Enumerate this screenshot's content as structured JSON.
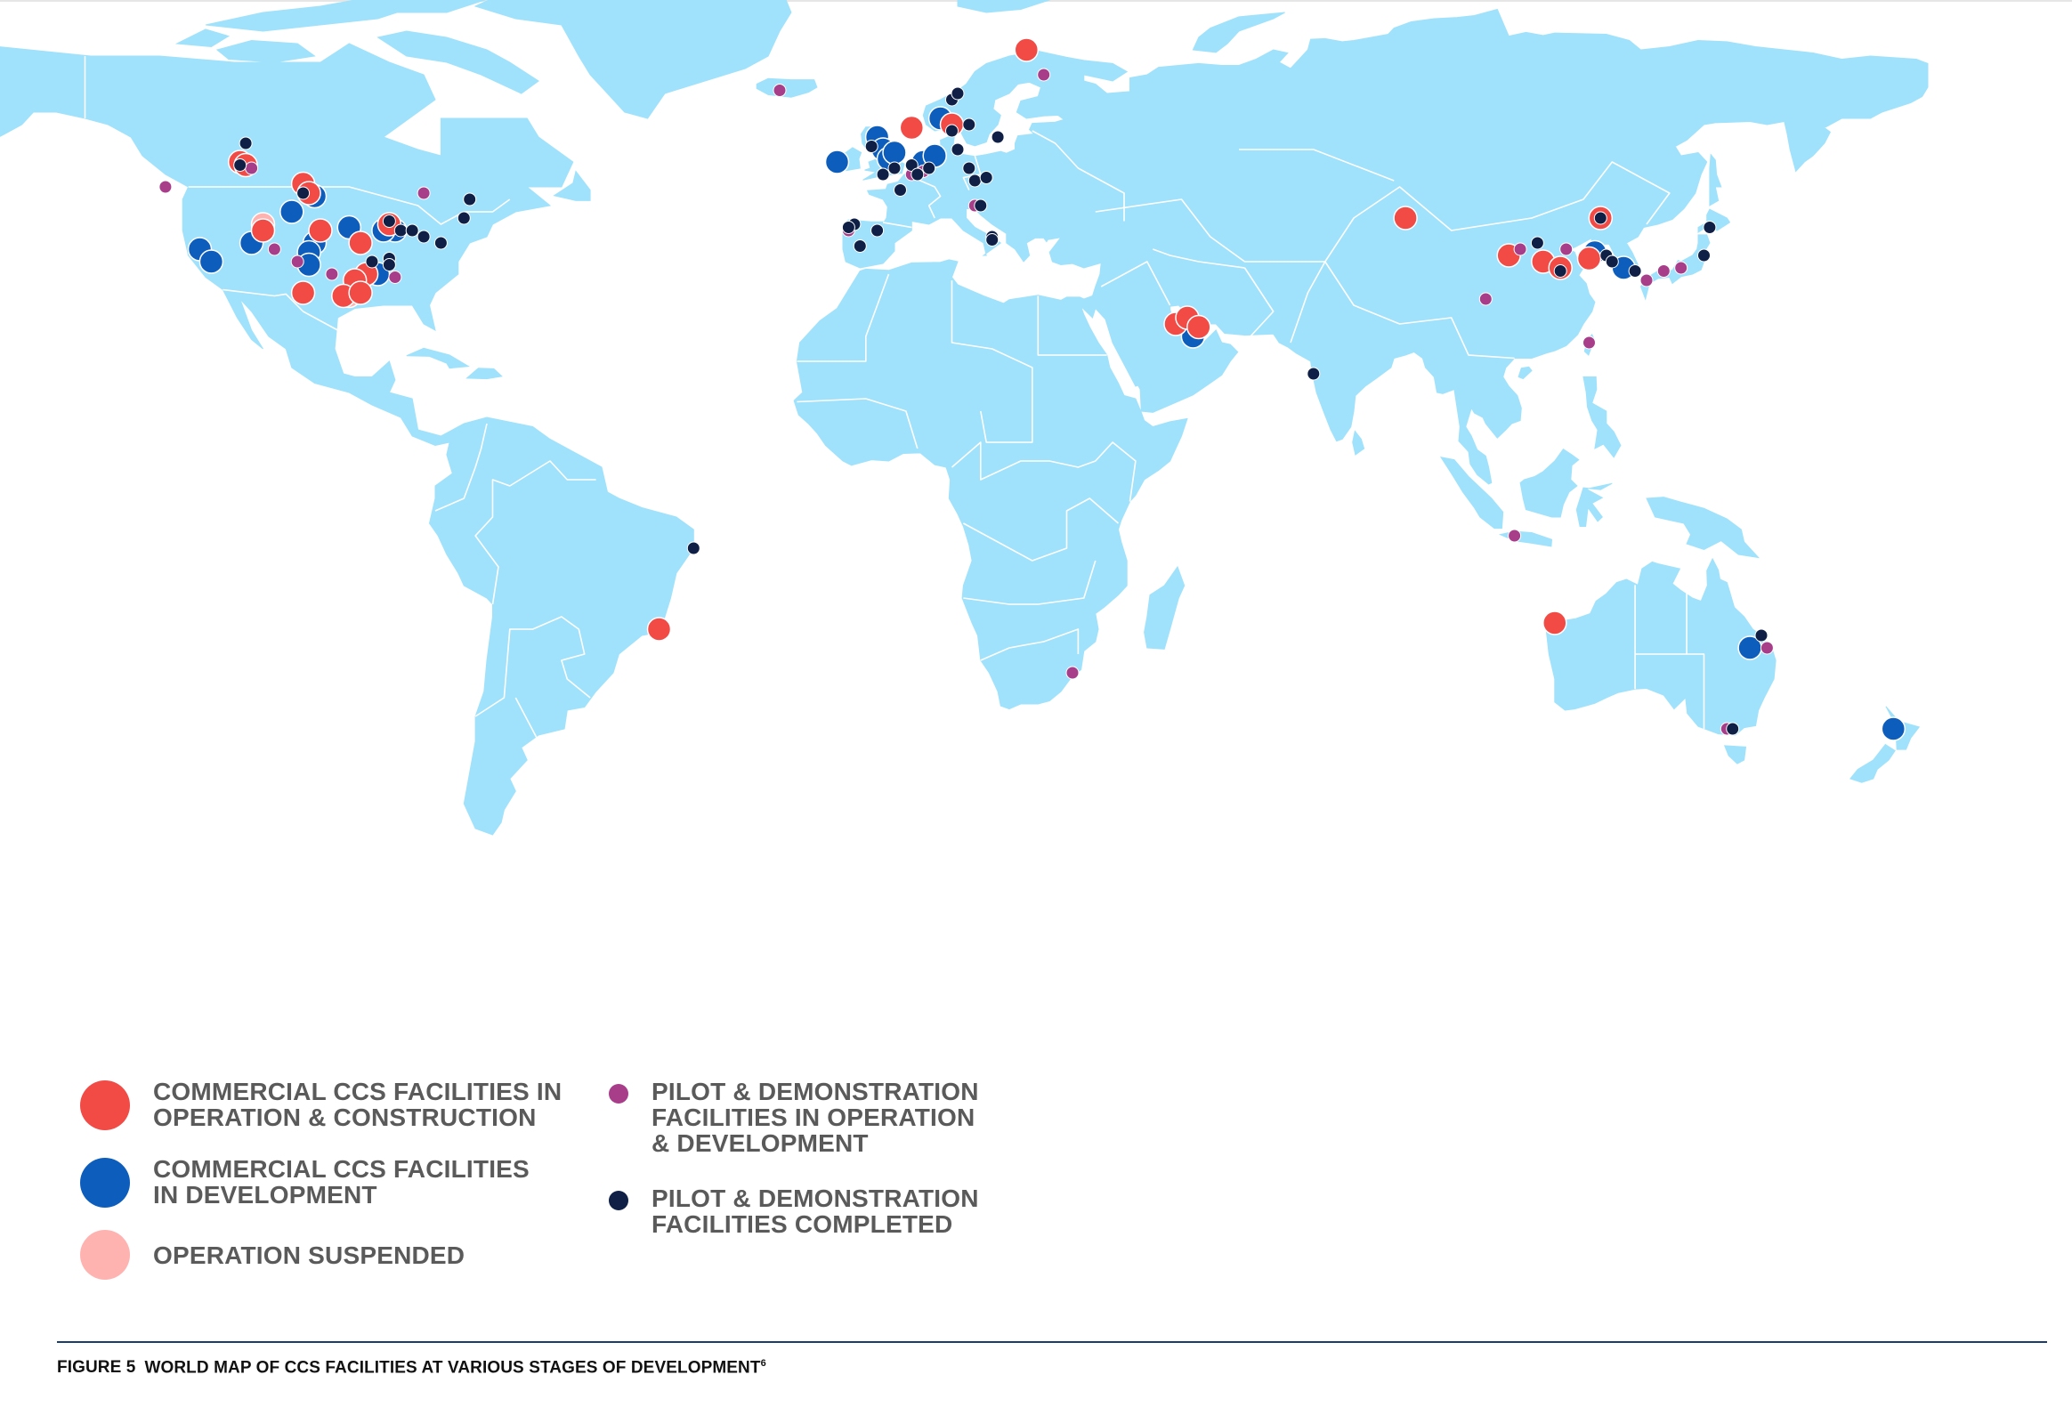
{
  "legend": {
    "items": [
      {
        "key": "commercial_operation",
        "label": "COMMERCIAL CCS FACILITIES IN\nOPERATION & CONSTRUCTION",
        "color": "#f24a45"
      },
      {
        "key": "commercial_development",
        "label": "COMMERCIAL CCS FACILITIES\nIN DEVELOPMENT",
        "color": "#0d5dbd"
      },
      {
        "key": "suspended",
        "label": "OPERATION SUSPENDED",
        "color": "#ffb3b0"
      },
      {
        "key": "pilot_operation",
        "label": "PILOT & DEMONSTRATION\nFACILITIES IN OPERATION\n& DEVELOPMENT",
        "color": "#a83e8a"
      },
      {
        "key": "pilot_completed",
        "label": "PILOT & DEMONSTRATION\nFACILITIES COMPLETED",
        "color": "#0f1f45"
      }
    ]
  },
  "caption": {
    "number": "FIGURE 5",
    "title": "WORLD MAP OF CCS FACILITIES AT VARIOUS STAGES OF DEVELOPMENT",
    "footnote": "6"
  },
  "map": {
    "land_color": "#a0e2fb",
    "ocean_color": "#ffffff",
    "border_color": "#ffffff",
    "marker_stroke": "#ffffff",
    "facilities": [
      {
        "t": "commercial_operation",
        "lon": -114,
        "lat": 53
      },
      {
        "t": "commercial_operation",
        "lon": -113,
        "lat": 52.5
      },
      {
        "t": "commercial_operation",
        "lon": -103,
        "lat": 49.5
      },
      {
        "t": "commercial_operation",
        "lon": -102,
        "lat": 48
      },
      {
        "t": "commercial_operation",
        "lon": -110,
        "lat": 42
      },
      {
        "t": "commercial_operation",
        "lon": -100,
        "lat": 42
      },
      {
        "t": "commercial_operation",
        "lon": -93,
        "lat": 40
      },
      {
        "t": "commercial_operation",
        "lon": -88,
        "lat": 43
      },
      {
        "t": "commercial_operation",
        "lon": -92,
        "lat": 35
      },
      {
        "t": "commercial_operation",
        "lon": -94,
        "lat": 34
      },
      {
        "t": "commercial_operation",
        "lon": -103,
        "lat": 32
      },
      {
        "t": "commercial_operation",
        "lon": -96,
        "lat": 31.5
      },
      {
        "t": "commercial_operation",
        "lon": -93,
        "lat": 32
      },
      {
        "t": "commercial_operation",
        "lon": -41,
        "lat": -22
      },
      {
        "t": "commercial_operation",
        "lon": 3,
        "lat": 58.5
      },
      {
        "t": "commercial_operation",
        "lon": 10,
        "lat": 59
      },
      {
        "t": "commercial_operation",
        "lon": 23,
        "lat": 71
      },
      {
        "t": "commercial_operation",
        "lon": 49,
        "lat": 27
      },
      {
        "t": "commercial_operation",
        "lon": 51,
        "lat": 28
      },
      {
        "t": "commercial_operation",
        "lon": 53,
        "lat": 26.5
      },
      {
        "t": "commercial_operation",
        "lon": 89,
        "lat": 44
      },
      {
        "t": "commercial_operation",
        "lon": 123,
        "lat": 44
      },
      {
        "t": "commercial_operation",
        "lon": 107,
        "lat": 38
      },
      {
        "t": "commercial_operation",
        "lon": 113,
        "lat": 37
      },
      {
        "t": "commercial_operation",
        "lon": 116,
        "lat": 36
      },
      {
        "t": "commercial_operation",
        "lon": 121,
        "lat": 37.5
      },
      {
        "t": "commercial_operation",
        "lon": 115,
        "lat": -21
      },
      {
        "t": "commercial_development",
        "lon": -101,
        "lat": 47.5
      },
      {
        "t": "commercial_development",
        "lon": -105,
        "lat": 45
      },
      {
        "t": "commercial_development",
        "lon": -95,
        "lat": 42.5
      },
      {
        "t": "commercial_development",
        "lon": -101,
        "lat": 40
      },
      {
        "t": "commercial_development",
        "lon": -102,
        "lat": 38.5
      },
      {
        "t": "commercial_development",
        "lon": -102,
        "lat": 36.5
      },
      {
        "t": "commercial_development",
        "lon": -87,
        "lat": 42
      },
      {
        "t": "commercial_development",
        "lon": -89,
        "lat": 42
      },
      {
        "t": "commercial_development",
        "lon": -90,
        "lat": 35
      },
      {
        "t": "commercial_development",
        "lon": -121,
        "lat": 39
      },
      {
        "t": "commercial_development",
        "lon": -119,
        "lat": 37
      },
      {
        "t": "commercial_development",
        "lon": -112,
        "lat": 40
      },
      {
        "t": "commercial_development",
        "lon": -10,
        "lat": 53
      },
      {
        "t": "commercial_development",
        "lon": -3,
        "lat": 57
      },
      {
        "t": "commercial_development",
        "lon": -2,
        "lat": 55
      },
      {
        "t": "commercial_development",
        "lon": -1,
        "lat": 53.5
      },
      {
        "t": "commercial_development",
        "lon": 0,
        "lat": 54.5
      },
      {
        "t": "commercial_development",
        "lon": 5,
        "lat": 53
      },
      {
        "t": "commercial_development",
        "lon": 7,
        "lat": 54
      },
      {
        "t": "commercial_development",
        "lon": 8,
        "lat": 60
      },
      {
        "t": "commercial_development",
        "lon": 52,
        "lat": 25
      },
      {
        "t": "commercial_development",
        "lon": 122,
        "lat": 38.5
      },
      {
        "t": "commercial_development",
        "lon": 127,
        "lat": 36
      },
      {
        "t": "commercial_development",
        "lon": 149,
        "lat": -25
      },
      {
        "t": "commercial_development",
        "lon": 174,
        "lat": -38
      },
      {
        "t": "suspended",
        "lon": -110,
        "lat": 43
      },
      {
        "t": "suspended",
        "lon": -95,
        "lat": 31.5
      },
      {
        "t": "pilot_operation",
        "lon": -127,
        "lat": 49
      },
      {
        "t": "pilot_operation",
        "lon": -112,
        "lat": 52
      },
      {
        "t": "pilot_operation",
        "lon": -108,
        "lat": 39
      },
      {
        "t": "pilot_operation",
        "lon": -104,
        "lat": 37
      },
      {
        "t": "pilot_operation",
        "lon": -98,
        "lat": 35
      },
      {
        "t": "pilot_operation",
        "lon": -87,
        "lat": 34.5
      },
      {
        "t": "pilot_operation",
        "lon": -20,
        "lat": 64.5
      },
      {
        "t": "pilot_operation",
        "lon": -82,
        "lat": 48
      },
      {
        "t": "pilot_operation",
        "lon": -8,
        "lat": 42
      },
      {
        "t": "pilot_operation",
        "lon": 3,
        "lat": 51
      },
      {
        "t": "pilot_operation",
        "lon": 5,
        "lat": 51.5
      },
      {
        "t": "pilot_operation",
        "lon": 14,
        "lat": 46
      },
      {
        "t": "pilot_operation",
        "lon": 26,
        "lat": 67
      },
      {
        "t": "pilot_operation",
        "lon": 31,
        "lat": -29
      },
      {
        "t": "pilot_operation",
        "lon": 103,
        "lat": 31
      },
      {
        "t": "pilot_operation",
        "lon": 109,
        "lat": 39
      },
      {
        "t": "pilot_operation",
        "lon": 117,
        "lat": 39
      },
      {
        "t": "pilot_operation",
        "lon": 121,
        "lat": 24
      },
      {
        "t": "pilot_operation",
        "lon": 131,
        "lat": 34
      },
      {
        "t": "pilot_operation",
        "lon": 134,
        "lat": 35.5
      },
      {
        "t": "pilot_operation",
        "lon": 137,
        "lat": 36
      },
      {
        "t": "pilot_operation",
        "lon": 108,
        "lat": -7
      },
      {
        "t": "pilot_operation",
        "lon": 152,
        "lat": -25
      },
      {
        "t": "pilot_operation",
        "lon": 145,
        "lat": -38
      },
      {
        "t": "pilot_completed",
        "lon": -113,
        "lat": 56
      },
      {
        "t": "pilot_completed",
        "lon": -114,
        "lat": 52.5
      },
      {
        "t": "pilot_completed",
        "lon": -103,
        "lat": 48
      },
      {
        "t": "pilot_completed",
        "lon": -88,
        "lat": 43.5
      },
      {
        "t": "pilot_completed",
        "lon": -86,
        "lat": 42
      },
      {
        "t": "pilot_completed",
        "lon": -84,
        "lat": 42
      },
      {
        "t": "pilot_completed",
        "lon": -82,
        "lat": 41
      },
      {
        "t": "pilot_completed",
        "lon": -79,
        "lat": 40
      },
      {
        "t": "pilot_completed",
        "lon": -75,
        "lat": 44
      },
      {
        "t": "pilot_completed",
        "lon": -74,
        "lat": 47
      },
      {
        "t": "pilot_completed",
        "lon": -91,
        "lat": 37
      },
      {
        "t": "pilot_completed",
        "lon": -88,
        "lat": 37.5
      },
      {
        "t": "pilot_completed",
        "lon": -88,
        "lat": 36.5
      },
      {
        "t": "pilot_completed",
        "lon": -35,
        "lat": -9
      },
      {
        "t": "pilot_completed",
        "lon": -7,
        "lat": 43
      },
      {
        "t": "pilot_completed",
        "lon": -8,
        "lat": 42.5
      },
      {
        "t": "pilot_completed",
        "lon": -6,
        "lat": 39.5
      },
      {
        "t": "pilot_completed",
        "lon": -3,
        "lat": 42
      },
      {
        "t": "pilot_completed",
        "lon": -4,
        "lat": 55.5
      },
      {
        "t": "pilot_completed",
        "lon": -2,
        "lat": 51
      },
      {
        "t": "pilot_completed",
        "lon": 0,
        "lat": 52
      },
      {
        "t": "pilot_completed",
        "lon": 1,
        "lat": 48.5
      },
      {
        "t": "pilot_completed",
        "lon": 3,
        "lat": 52.5
      },
      {
        "t": "pilot_completed",
        "lon": 4,
        "lat": 51
      },
      {
        "t": "pilot_completed",
        "lon": 6,
        "lat": 52
      },
      {
        "t": "pilot_completed",
        "lon": 10,
        "lat": 58
      },
      {
        "t": "pilot_completed",
        "lon": 13,
        "lat": 59
      },
      {
        "t": "pilot_completed",
        "lon": 11,
        "lat": 55
      },
      {
        "t": "pilot_completed",
        "lon": 13,
        "lat": 52
      },
      {
        "t": "pilot_completed",
        "lon": 14,
        "lat": 50
      },
      {
        "t": "pilot_completed",
        "lon": 16,
        "lat": 50.5
      },
      {
        "t": "pilot_completed",
        "lon": 18,
        "lat": 57
      },
      {
        "t": "pilot_completed",
        "lon": 10,
        "lat": 63
      },
      {
        "t": "pilot_completed",
        "lon": 11,
        "lat": 64
      },
      {
        "t": "pilot_completed",
        "lon": 15,
        "lat": 46
      },
      {
        "t": "pilot_completed",
        "lon": 17,
        "lat": 41
      },
      {
        "t": "pilot_completed",
        "lon": 17,
        "lat": 40.5
      },
      {
        "t": "pilot_completed",
        "lon": 73,
        "lat": 19
      },
      {
        "t": "pilot_completed",
        "lon": 112,
        "lat": 40
      },
      {
        "t": "pilot_completed",
        "lon": 116,
        "lat": 35.5
      },
      {
        "t": "pilot_completed",
        "lon": 123,
        "lat": 44
      },
      {
        "t": "pilot_completed",
        "lon": 124,
        "lat": 38
      },
      {
        "t": "pilot_completed",
        "lon": 125,
        "lat": 37
      },
      {
        "t": "pilot_completed",
        "lon": 129,
        "lat": 35.5
      },
      {
        "t": "pilot_completed",
        "lon": 141,
        "lat": 38
      },
      {
        "t": "pilot_completed",
        "lon": 142,
        "lat": 42.5
      },
      {
        "t": "pilot_completed",
        "lon": 151,
        "lat": -23
      },
      {
        "t": "pilot_completed",
        "lon": 146,
        "lat": -38
      }
    ]
  }
}
